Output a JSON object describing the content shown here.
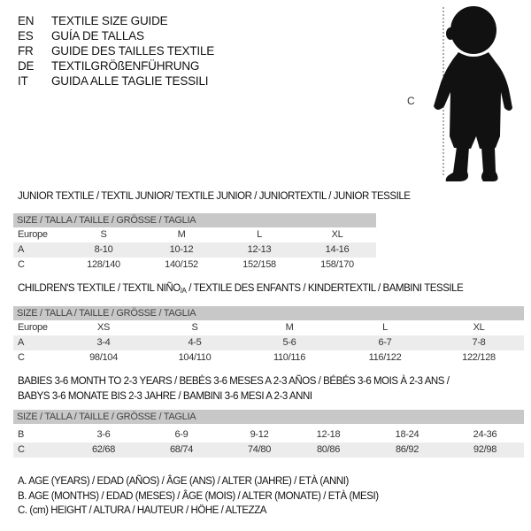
{
  "languages": [
    {
      "code": "EN",
      "title": "TEXTILE SIZE GUIDE"
    },
    {
      "code": "ES",
      "title": "GUÍA DE TALLAS"
    },
    {
      "code": "FR",
      "title": "GUIDE DES TAILLES TEXTILE"
    },
    {
      "code": "DE",
      "title": "TEXTILGRÖßENFÜHRUNG"
    },
    {
      "code": "IT",
      "title": "GUIDA ALLE TAGLIE TESSILI"
    }
  ],
  "figure": {
    "measure_label": "C"
  },
  "junior": {
    "title": "JUNIOR TEXTILE / TEXTIL JUNIOR/ TEXTILE JUNIOR / JUNIORTEXTIL / JUNIOR TESSILE",
    "header": "SIZE / TALLA / TAILLE / GRÖSSE / TAGLIA",
    "rows": [
      {
        "label": "Europe",
        "values": [
          "S",
          "M",
          "L",
          "XL"
        ]
      },
      {
        "label": "A",
        "values": [
          "8-10",
          "10-12",
          "12-13",
          "14-16"
        ]
      },
      {
        "label": "C",
        "values": [
          "128/140",
          "140/152",
          "152/158",
          "158/170"
        ]
      }
    ]
  },
  "children": {
    "title": "CHILDREN'S TEXTILE / TEXTIL NIÑO",
    "title_sub": "/A",
    "title_rest": " / TEXTILE DES ENFANTS / KINDERTEXTIL / BAMBINI TESSILE",
    "header": "SIZE / TALLA / TAILLE / GRÖSSE / TAGLIA",
    "rows": [
      {
        "label": "Europe",
        "values": [
          "XS",
          "S",
          "M",
          "L",
          "XL"
        ]
      },
      {
        "label": "A",
        "values": [
          "3-4",
          "4-5",
          "5-6",
          "6-7",
          "7-8"
        ]
      },
      {
        "label": "C",
        "values": [
          "98/104",
          "104/110",
          "110/116",
          "116/122",
          "122/128"
        ]
      }
    ]
  },
  "babies": {
    "title_line1": "BABIES 3-6 MONTH TO 2-3 YEARS / BEBÉS 3-6 MESES A 2-3 AÑOS / BÉBÉS 3-6 MOIS À 2-3 ANS /",
    "title_line2": "BABYS 3-6 MONATE BIS 2-3 JAHRE / BAMBINI 3-6 MESI A 2-3 ANNI",
    "header": "SIZE / TALLA / TAILLE / GRÖSSE / TAGLIA",
    "rows": [
      {
        "label": "B",
        "values": [
          "3-6",
          "6-9",
          "9-12",
          "12-18",
          "18-24",
          "24-36"
        ]
      },
      {
        "label": "C",
        "values": [
          "62/68",
          "68/74",
          "74/80",
          "80/86",
          "86/92",
          "92/98"
        ]
      }
    ]
  },
  "legend": [
    "A. AGE (YEARS) / EDAD (AÑOS) / ÂGE (ANS) / ALTER (JAHRE) / ETÀ (ANNI)",
    "B. AGE (MONTHS) / EDAD (MESES) / ÂGE (MOIS) / ALTER (MONATE) / ETÀ (MESI)",
    "C. (cm) HEIGHT / ALTURA / HAUTEUR / HÖHE / ALTEZZA"
  ]
}
